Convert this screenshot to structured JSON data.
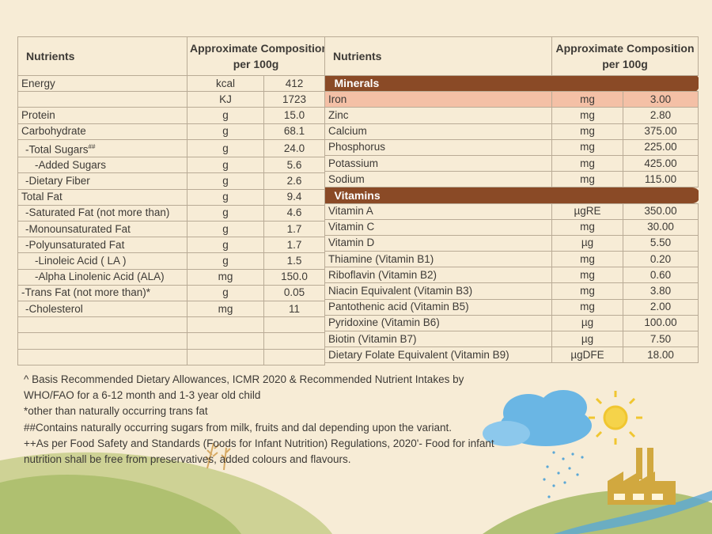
{
  "left_table": {
    "header": {
      "nutrients": "Nutrients",
      "composition_line1": "Approximate Composition",
      "composition_line2": "per 100g"
    },
    "rows": [
      {
        "name": "Energy",
        "unit": "kcal",
        "value": "412",
        "indent": 0
      },
      {
        "name": "",
        "unit": "KJ",
        "value": "1723",
        "indent": 0
      },
      {
        "name": "Protein",
        "unit": "g",
        "value": "15.0",
        "indent": 0
      },
      {
        "name": "Carbohydrate",
        "unit": "g",
        "value": "68.1",
        "indent": 0
      },
      {
        "name": "-Total Sugars",
        "sup": "##",
        "unit": "g",
        "value": "24.0",
        "indent": 1
      },
      {
        "name": "-Added Sugars",
        "unit": "g",
        "value": "5.6",
        "indent": 2
      },
      {
        "name": "-Dietary Fiber",
        "unit": "g",
        "value": "2.6",
        "indent": 1
      },
      {
        "name": "Total Fat",
        "unit": "g",
        "value": "9.4",
        "indent": 0
      },
      {
        "name": "-Saturated Fat (not more than)",
        "unit": "g",
        "value": "4.6",
        "indent": 1
      },
      {
        "name": "-Monounsaturated Fat",
        "unit": "g",
        "value": "1.7",
        "indent": 1
      },
      {
        "name": "-Polyunsaturated Fat",
        "unit": "g",
        "value": "1.7",
        "indent": 1
      },
      {
        "name": "-Linoleic Acid ( LA )",
        "unit": "g",
        "value": "1.5",
        "indent": 2
      },
      {
        "name": "-Alpha Linolenic Acid (ALA)",
        "unit": "mg",
        "value": "150.0",
        "indent": 2
      },
      {
        "name": "-Trans Fat (not more than)*",
        "unit": "g",
        "value": "0.05",
        "indent": 0
      },
      {
        "name": "-Cholesterol",
        "unit": "mg",
        "value": "11",
        "indent": 1
      },
      {
        "name": "",
        "unit": "",
        "value": "",
        "indent": 0
      },
      {
        "name": "",
        "unit": "",
        "value": "",
        "indent": 0
      },
      {
        "name": "",
        "unit": "",
        "value": "",
        "indent": 0
      }
    ]
  },
  "right_table": {
    "header": {
      "nutrients": "Nutrients",
      "composition_line1": "Approximate Composition",
      "composition_line2": "per 100g"
    },
    "sections": [
      {
        "title": "Minerals",
        "rows": [
          {
            "name": "Iron",
            "unit": "mg",
            "value": "3.00",
            "highlight": true
          },
          {
            "name": "Zinc",
            "unit": "mg",
            "value": "2.80"
          },
          {
            "name": "Calcium",
            "unit": "mg",
            "value": "375.00"
          },
          {
            "name": "Phosphorus",
            "unit": "mg",
            "value": "225.00"
          },
          {
            "name": "Potassium",
            "unit": "mg",
            "value": "425.00"
          },
          {
            "name": "Sodium",
            "unit": "mg",
            "value": "115.00"
          }
        ]
      },
      {
        "title": "Vitamins",
        "rows": [
          {
            "name": "Vitamin A",
            "unit": "µgRE",
            "value": "350.00"
          },
          {
            "name": "Vitamin C",
            "unit": "mg",
            "value": "30.00"
          },
          {
            "name": "Vitamin D",
            "unit": "µg",
            "value": "5.50"
          },
          {
            "name": "Thiamine (Vitamin B1)",
            "unit": "mg",
            "value": "0.20"
          },
          {
            "name": "Riboflavin (Vitamin B2)",
            "unit": "mg",
            "value": "0.60"
          },
          {
            "name": "Niacin Equivalent (Vitamin B3)",
            "unit": "mg",
            "value": "3.80"
          },
          {
            "name": "Pantothenic acid (Vitamin B5)",
            "unit": "mg",
            "value": "2.00"
          },
          {
            "name": "Pyridoxine (Vitamin B6)",
            "unit": "µg",
            "value": "100.00"
          },
          {
            "name": "Biotin (Vitamin B7)",
            "unit": "µg",
            "value": "7.50"
          },
          {
            "name": "Dietary Folate Equivalent (Vitamin B9)",
            "unit": "µgDFE",
            "value": "18.00"
          }
        ]
      }
    ]
  },
  "footnotes": [
    "^ Basis Recommended Dietary Allowances, ICMR 2020 & Recommended Nutrient Intakes by",
    "  WHO/FAO for a 6-12 month and 1-3 year old child",
    "*other than naturally occurring trans fat",
    "##Contains naturally occurring sugars from milk, fruits and dal depending upon the variant.",
    "++As per Food Safety and Standards (Foods for Infant Nutrition) Regulations, 2020'- Food for infant",
    "nutrition   shall be free from preservatives, added colours and flavours."
  ],
  "colors": {
    "background": "#f7ecd6",
    "category_bar": "#8a4a26",
    "highlight_row": "#f4c0a6",
    "grid": "#b9ab96",
    "text": "#3d3a36"
  },
  "icons": [
    "sun-icon",
    "cloud-icon",
    "rain-icon",
    "factory-icon",
    "wheat-icon"
  ]
}
